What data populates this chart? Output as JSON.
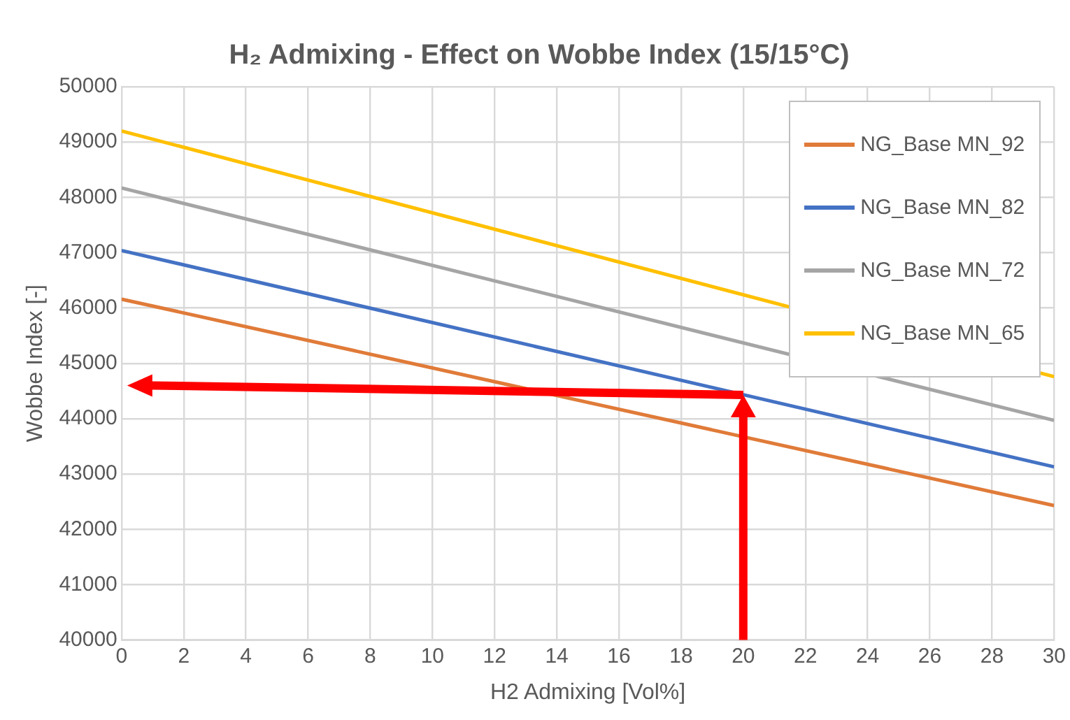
{
  "chart_data": {
    "type": "line",
    "title": "H₂ Admixing - Effect on Wobbe Index (15/15°C)",
    "xlabel": "H2 Admixing [Vol%]",
    "ylabel": "Wobbe Index [-]",
    "x": [
      0,
      30
    ],
    "series": [
      {
        "name": "NG_Base MN_92",
        "color": "#e07b39",
        "values": [
          46160,
          42430
        ]
      },
      {
        "name": "NG_Base MN_82",
        "color": "#4472c4",
        "values": [
          47040,
          43130
        ]
      },
      {
        "name": "NG_Base MN_72",
        "color": "#a5a5a5",
        "values": [
          48170,
          43970
        ]
      },
      {
        "name": "NG_Base MN_65",
        "color": "#ffc000",
        "values": [
          49200,
          44760
        ]
      }
    ],
    "xlim": [
      0,
      30
    ],
    "xticks": [
      0,
      2,
      4,
      6,
      8,
      10,
      12,
      14,
      16,
      18,
      20,
      22,
      24,
      26,
      28,
      30
    ],
    "ylim": [
      40000,
      50000
    ],
    "yticks": [
      40000,
      41000,
      42000,
      43000,
      44000,
      45000,
      46000,
      47000,
      48000,
      49000,
      50000
    ],
    "grid": true,
    "legend": "top right",
    "marker": "none",
    "line_style": "solid"
  }
}
